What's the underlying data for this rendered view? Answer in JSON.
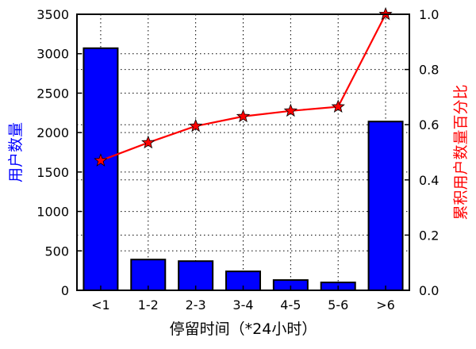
{
  "chart_data": {
    "type": "bar",
    "xlabel": "停留时间（*24小时）",
    "ylabel_left": "用户数量",
    "ylabel_right": "累积用户数量百分比",
    "categories": [
      "<1",
      "1-2",
      "2-3",
      "3-4",
      "4-5",
      "5-6",
      ">6"
    ],
    "series": [
      {
        "type": "bar",
        "axis": "left",
        "values": [
          3070,
          390,
          370,
          240,
          130,
          100,
          2140
        ]
      },
      {
        "type": "line",
        "axis": "right",
        "values": [
          0.47,
          0.535,
          0.595,
          0.63,
          0.65,
          0.665,
          1.0
        ]
      }
    ],
    "ylim_left": [
      0,
      3500
    ],
    "ylim_right": [
      0,
      1.0
    ],
    "yticks_left": [
      0,
      500,
      1000,
      1500,
      2000,
      2500,
      3000,
      3500
    ],
    "yticks_right": [
      0.0,
      0.2,
      0.4,
      0.6,
      0.8,
      1.0
    ],
    "yticks_right_labels": [
      "0.0",
      "0.2",
      "0.4",
      "0.6",
      "0.8",
      "1.0"
    ],
    "grid": true,
    "colors": {
      "bar": "#0000ff",
      "bar_edge": "#000000",
      "line": "#ff0000",
      "marker": "#ff0000",
      "left_label": "#0000ff",
      "right_label": "#ff0000",
      "grid": "#000000"
    }
  }
}
